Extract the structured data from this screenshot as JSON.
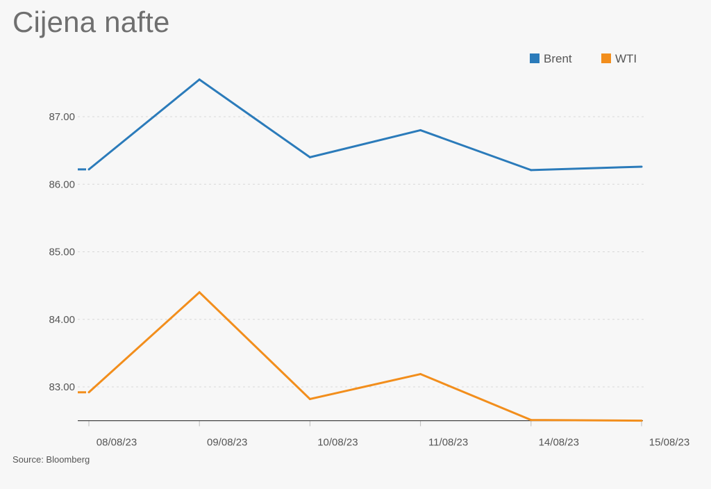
{
  "chart_data": {
    "type": "line",
    "title": "Cijena nafte",
    "source": "Source: Bloomberg",
    "categories": [
      "08/08/23",
      "09/08/23",
      "10/08/23",
      "11/08/23",
      "14/08/23",
      "15/08/23"
    ],
    "series": [
      {
        "name": "Brent",
        "color": "#2b7bba",
        "values": [
          86.22,
          87.55,
          86.4,
          86.8,
          86.21,
          86.26
        ]
      },
      {
        "name": "WTI",
        "color": "#f28e1c",
        "values": [
          82.92,
          84.4,
          82.82,
          83.19,
          82.51,
          82.5
        ]
      }
    ],
    "yticks": [
      "83.00",
      "84.00",
      "85.00",
      "86.00",
      "87.00"
    ],
    "ylim": [
      82.5,
      88.0
    ],
    "grid": true,
    "legend": "top-right"
  }
}
